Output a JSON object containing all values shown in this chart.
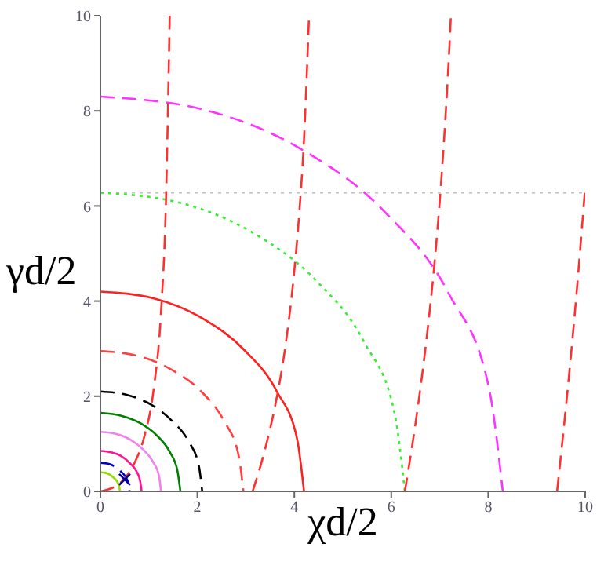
{
  "chart_data": {
    "type": "line",
    "xlabel": "χd/2",
    "ylabel": "γd/2",
    "xlim": [
      0,
      10
    ],
    "ylim": [
      0,
      10
    ],
    "xticks": [
      0,
      2,
      4,
      6,
      8,
      10
    ],
    "yticks": [
      0,
      2,
      4,
      6,
      8,
      10
    ],
    "marker": "none",
    "ref_lines": [
      {
        "axis": "y",
        "value": 6.28,
        "color": "#c0c0c0",
        "line_style": "dotted"
      }
    ],
    "series": [
      {
        "color": "#ff33ff",
        "line_style": "dashed",
        "x": [
          0,
          2.15,
          4.15,
          5.87,
          7.19,
          8.02,
          8.3
        ],
        "values": [
          8.3,
          8.02,
          7.19,
          5.87,
          4.15,
          2.15,
          0
        ]
      },
      {
        "color": "#33ee33",
        "line_style": "dotted",
        "x": [
          0,
          1.63,
          3.14,
          4.44,
          5.44,
          6.07,
          6.28
        ],
        "values": [
          6.28,
          6.07,
          5.44,
          4.44,
          3.14,
          1.63,
          0
        ]
      },
      {
        "color": "#ff2020",
        "line_style": "solid",
        "x": [
          0,
          1.09,
          2.1,
          2.97,
          3.64,
          4.06,
          4.2
        ],
        "values": [
          4.2,
          4.06,
          3.64,
          2.97,
          2.1,
          1.09,
          0
        ]
      },
      {
        "color": "#ff4040",
        "line_style": "dashed",
        "x": [
          0,
          0.76,
          1.48,
          2.09,
          2.55,
          2.85,
          2.95
        ],
        "values": [
          2.95,
          2.85,
          2.55,
          2.09,
          1.48,
          0.76,
          0
        ]
      },
      {
        "color": "#000000",
        "line_style": "dashed",
        "x": [
          0,
          0.54,
          1.05,
          1.48,
          1.82,
          2.03,
          2.1
        ],
        "values": [
          2.1,
          2.03,
          1.82,
          1.48,
          1.05,
          0.54,
          0
        ]
      },
      {
        "color": "#008000",
        "line_style": "solid",
        "x": [
          0,
          0.43,
          0.83,
          1.17,
          1.43,
          1.59,
          1.65
        ],
        "values": [
          1.65,
          1.59,
          1.43,
          1.17,
          0.83,
          0.43,
          0
        ]
      },
      {
        "color": "#ee82ee",
        "line_style": "solid",
        "x": [
          0,
          0.32,
          0.63,
          0.88,
          1.08,
          1.21,
          1.25
        ],
        "values": [
          1.25,
          1.21,
          1.08,
          0.88,
          0.63,
          0.32,
          0
        ]
      },
      {
        "color": "#ff1493",
        "line_style": "solid",
        "x": [
          0,
          0.22,
          0.43,
          0.6,
          0.74,
          0.82,
          0.85
        ],
        "values": [
          0.85,
          0.82,
          0.74,
          0.6,
          0.43,
          0.22,
          0
        ]
      },
      {
        "color": "#0000cc",
        "line_style": "dashed",
        "x": [
          0,
          0.16,
          0.3,
          0.42,
          0.52,
          0.58,
          0.6
        ],
        "values": [
          0.6,
          0.58,
          0.52,
          0.42,
          0.3,
          0.16,
          0
        ]
      },
      {
        "color": "#99dd00",
        "line_style": "solid",
        "x": [
          0,
          0.1,
          0.2,
          0.28,
          0.35,
          0.39,
          0.4
        ],
        "values": [
          0.4,
          0.39,
          0.35,
          0.28,
          0.2,
          0.1,
          0
        ]
      },
      {
        "color": "#ff3030",
        "line_style": "dashed",
        "x": [
          0,
          0.4,
          0.7,
          0.9,
          1.1,
          1.25,
          1.35,
          1.43
        ],
        "values": [
          0,
          0.17,
          0.59,
          1.13,
          2.16,
          3.76,
          6.02,
          10
        ]
      },
      {
        "color": "#ff3030",
        "line_style": "dashed",
        "x": [
          3.14,
          3.4,
          3.6,
          3.8,
          4.0,
          4.1,
          4.2,
          4.3
        ],
        "values": [
          0,
          0.9,
          1.78,
          2.94,
          4.64,
          5.82,
          7.4,
          9.9
        ]
      },
      {
        "color": "#ff3030",
        "line_style": "dashed",
        "x": [
          6.28,
          6.5,
          6.7,
          6.9,
          7.0,
          7.1,
          7.2,
          7.23
        ],
        "values": [
          0,
          1.43,
          2.97,
          4.89,
          6.1,
          7.57,
          9.36,
          10
        ]
      },
      {
        "color": "#ff3030",
        "line_style": "dashed",
        "x": [
          9.42,
          9.6,
          9.8,
          10
        ],
        "values": [
          0,
          1.75,
          3.91,
          6.4
        ]
      },
      {
        "type": "scatter",
        "marker": "cross",
        "color": "#000099",
        "x": [
          0.5
        ],
        "values": [
          0.25
        ]
      }
    ]
  }
}
